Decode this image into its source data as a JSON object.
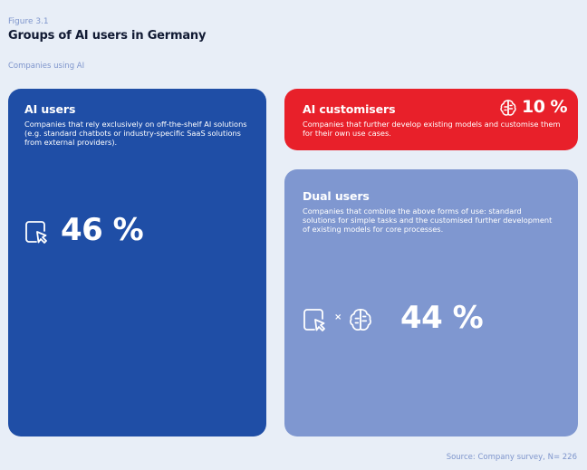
{
  "figure": {
    "label": "Figure 3.1",
    "title": "Groups of AI users in Germany",
    "subtitle": "Companies using AI",
    "source": "Source: Company survey, N= 226"
  },
  "colors": {
    "ai_users": "#1f4ea6",
    "ai_customisers": "#e8202a",
    "dual_users": "#7f97d0",
    "background": "#e8eef7"
  },
  "cards": {
    "ai_users": {
      "title": "AI users",
      "description": "Companies that rely exclusively on off-the-shelf AI solutions (e.g. standard chatbots or industry-specific SaaS solutions from external providers).",
      "percent_label": "46 %",
      "icons": [
        "cursor-window-icon"
      ]
    },
    "ai_customisers": {
      "title": "AI customisers",
      "description": "Companies that further develop existing models and customise them for their own use cases.",
      "percent_label": "10 %",
      "icons": [
        "brain-icon"
      ]
    },
    "dual_users": {
      "title": "Dual users",
      "description": "Companies that combine the above forms of use: standard solutions for simple tasks and the customised further development of existing models for core processes.",
      "percent_label": "44 %",
      "times_symbol": "×",
      "icons": [
        "cursor-window-icon",
        "times-icon",
        "brain-icon"
      ]
    }
  },
  "chart_data": {
    "type": "table",
    "title": "Groups of AI users in Germany",
    "subtitle": "Companies using AI",
    "categories": [
      "AI users",
      "AI customisers",
      "Dual users"
    ],
    "values": [
      46,
      10,
      44
    ],
    "unit": "%",
    "source": "Source: Company survey, N= 226"
  }
}
